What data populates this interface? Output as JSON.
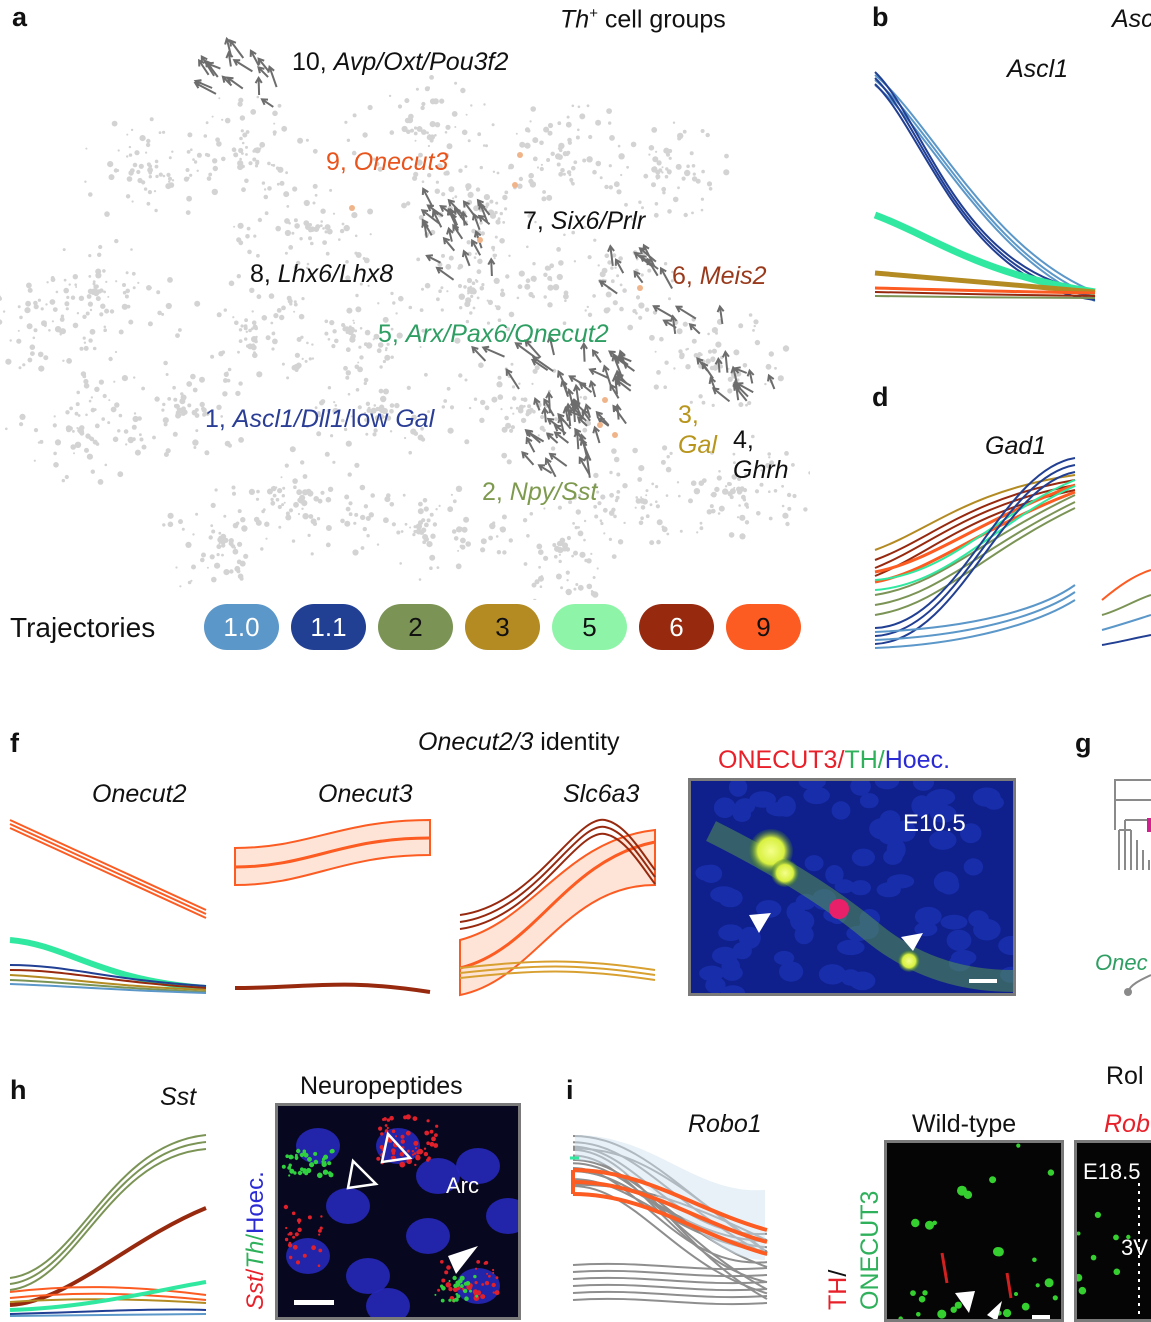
{
  "panel_a": {
    "label": "a",
    "title_italic": "Th",
    "title_sup": "+",
    "title_rest": " cell groups",
    "clusters": [
      {
        "num": "10, ",
        "name": "Avp/Oxt/Pou3f2",
        "color": "#111111"
      },
      {
        "num": "9, ",
        "name": "Onecut3",
        "color": "#e8541c"
      },
      {
        "num": "7, ",
        "name": "Six6/Prlr",
        "color": "#111111"
      },
      {
        "num": "8, ",
        "name": "Lhx6/Lhx8",
        "color": "#111111"
      },
      {
        "num": "6, ",
        "name": "Meis2",
        "color": "#9a3a1c"
      },
      {
        "num": "5, ",
        "name": "Arx/Pax6/Onecut2",
        "color": "#2e9e62"
      },
      {
        "num": "1, ",
        "name": "Ascl1/Dll1",
        "suffix": "/low ",
        "name2": "Gal",
        "color": "#2b3e96"
      },
      {
        "num": "3,",
        "name": "Gal",
        "color": "#b8951c"
      },
      {
        "num": "4,",
        "name": "Ghrh",
        "color": "#111111"
      },
      {
        "num": "2, ",
        "name": "Npy/Sst",
        "color": "#7e9a4e"
      }
    ],
    "trajectories_label": "Trajectories",
    "trajectories": [
      {
        "label": "1.0",
        "color": "#5b97c9"
      },
      {
        "label": "1.1",
        "color": "#213f93"
      },
      {
        "label": "2",
        "color": "#7b9456"
      },
      {
        "label": "3",
        "color": "#b38b22"
      },
      {
        "label": "5",
        "color": "#8ef5a8"
      },
      {
        "label": "6",
        "color": "#97290f"
      },
      {
        "label": "9",
        "color": "#fc5b22"
      }
    ]
  },
  "panel_b": {
    "label": "b",
    "gene": "Ascl1",
    "cut_text": "Asc"
  },
  "panel_d": {
    "label": "d",
    "gene": "Gad1"
  },
  "panel_f": {
    "label": "f",
    "title_italic": "Onecut2/3",
    "title_rest": " identity",
    "genes": [
      "Onecut2",
      "Onecut3",
      "Slc6a3"
    ],
    "micro_title": {
      "a": "ONECUT3",
      "b": "TH",
      "c": "Hoec.",
      "sep": "/"
    },
    "micro_stage": "E10.5"
  },
  "panel_g": {
    "label": "g",
    "cut_text": "Onec"
  },
  "panel_h": {
    "label": "h",
    "gene": "Sst",
    "micro_title": "Neuropeptides",
    "micro_side": {
      "a": "Sst",
      "b": "Th",
      "c": "Hoec.",
      "sep": "/"
    },
    "region": "Arc"
  },
  "panel_i": {
    "label": "i",
    "gene": "Robo1",
    "cut_title": "Rol",
    "wt_title": "Wild-type",
    "mut_title": "Rob",
    "side": {
      "a": "TH",
      "sep": "/",
      "b": "ONECUT3"
    },
    "stage": "E18.5",
    "ventricle": "3V"
  },
  "colors": {
    "t10": "#5b97c9",
    "t11": "#213f93",
    "t2": "#7b9456",
    "t3": "#b38b22",
    "t5": "#8ef5a8",
    "t6": "#97290f",
    "t9": "#fc5b22",
    "grey": "#9a9a9a"
  }
}
